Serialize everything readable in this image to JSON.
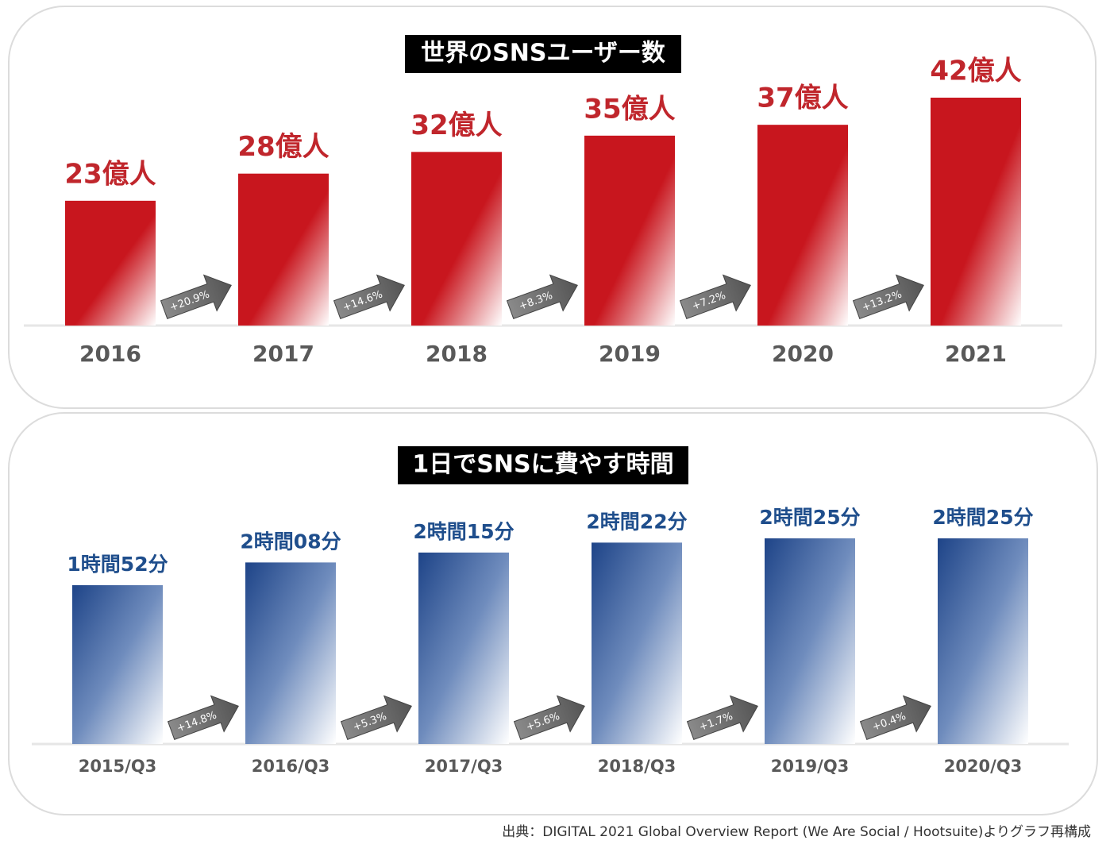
{
  "chart_data": [
    {
      "type": "bar",
      "title": "世界のSNSユーザー数",
      "categories": [
        "2016",
        "2017",
        "2018",
        "2019",
        "2020",
        "2021"
      ],
      "values": [
        23,
        28,
        32,
        35,
        37,
        42
      ],
      "value_labels": [
        "23億人",
        "28億人",
        "32億人",
        "35億人",
        "37億人",
        "42億人"
      ],
      "annotations": [
        "+20.9%",
        "+14.6%",
        "+8.3%",
        "+7.2%",
        "+13.2%"
      ],
      "color": "#c8161e",
      "label_color": "#c0262c"
    },
    {
      "type": "bar",
      "title": "1日でSNSに費やす時間",
      "categories": [
        "2015/Q3",
        "2016/Q3",
        "2017/Q3",
        "2018/Q3",
        "2019/Q3",
        "2020/Q3"
      ],
      "values": [
        112,
        128,
        135,
        142,
        145,
        145
      ],
      "value_labels": [
        "1時間52分",
        "2時間08分",
        "2時間15分",
        "2時間22分",
        "2時間25分",
        "2時間25分"
      ],
      "annotations": [
        "+14.8%",
        "+5.3%",
        "+5.6%",
        "+1.7%",
        "+0.4%"
      ],
      "color": "#1e4488",
      "label_color": "#1f4e8c"
    }
  ],
  "source": "出典：DIGITAL 2021 Global Overview Report (We Are Social / Hootsuite)よりグラフ再構成"
}
